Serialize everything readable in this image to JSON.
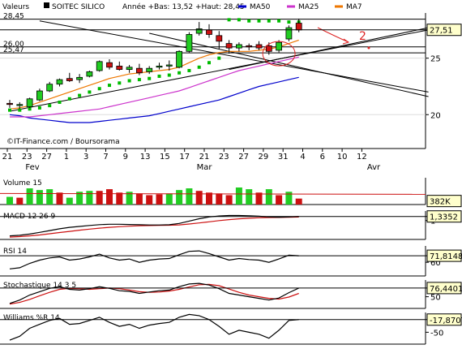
{
  "header": {
    "valeurs_label": "Valeurs",
    "stock_name": "SOITEC SILICO",
    "year_info": "Année +Bas: 13,52 +Haut: 28,45",
    "legend": [
      {
        "label": "MA50",
        "color": "#0000cc"
      },
      {
        "label": "MA25",
        "color": "#cc33cc"
      },
      {
        "label": "MA7",
        "color": "#ee7700"
      }
    ]
  },
  "watermark": "©IT-Finance.com / Boursorama",
  "annotation": "2",
  "colors": {
    "up": "#22cc22",
    "down": "#cc1111",
    "psar": "#00bb00",
    "ma50": "#0000cc",
    "ma25": "#cc33cc",
    "ma7": "#ee7700"
  },
  "chart_data": [
    {
      "type": "candlestick",
      "ylim": [
        17,
        29
      ],
      "y_ticks": [
        "20",
        "25"
      ],
      "level_labels": [
        "28,45",
        "26,00",
        "25,47"
      ],
      "levels": [
        28.45,
        26.0,
        25.47
      ],
      "last_value_label": "27,51",
      "last_value": 27.51,
      "x_tick_labels": [
        "21",
        "23",
        "27",
        "1",
        "3",
        "7",
        "9",
        "13",
        "15",
        "17",
        "21",
        "23",
        "27",
        "29",
        "31",
        "4",
        "6",
        "10",
        "12"
      ],
      "month_labels": [
        "Fev",
        "Mar",
        "Avr"
      ],
      "candles": [
        {
          "o": 21.0,
          "h": 21.3,
          "l": 20.6,
          "c": 20.9
        },
        {
          "o": 20.8,
          "h": 21.1,
          "l": 20.5,
          "c": 20.9
        },
        {
          "o": 20.7,
          "h": 21.5,
          "l": 20.6,
          "c": 21.4
        },
        {
          "o": 21.3,
          "h": 22.3,
          "l": 21.2,
          "c": 22.1
        },
        {
          "o": 22.1,
          "h": 22.9,
          "l": 22.0,
          "c": 22.7
        },
        {
          "o": 22.7,
          "h": 23.2,
          "l": 22.5,
          "c": 23.1
        },
        {
          "o": 23.2,
          "h": 23.7,
          "l": 22.9,
          "c": 23.0
        },
        {
          "o": 23.1,
          "h": 23.6,
          "l": 22.8,
          "c": 23.3
        },
        {
          "o": 23.4,
          "h": 23.9,
          "l": 23.3,
          "c": 23.8
        },
        {
          "o": 23.9,
          "h": 24.8,
          "l": 23.8,
          "c": 24.7
        },
        {
          "o": 24.6,
          "h": 24.9,
          "l": 24.0,
          "c": 24.2
        },
        {
          "o": 24.3,
          "h": 24.7,
          "l": 23.9,
          "c": 24.0
        },
        {
          "o": 24.0,
          "h": 24.4,
          "l": 23.7,
          "c": 24.2
        },
        {
          "o": 24.1,
          "h": 24.5,
          "l": 23.5,
          "c": 23.7
        },
        {
          "o": 23.8,
          "h": 24.3,
          "l": 23.6,
          "c": 24.1
        },
        {
          "o": 24.2,
          "h": 24.6,
          "l": 24.0,
          "c": 24.3
        },
        {
          "o": 24.3,
          "h": 24.8,
          "l": 23.9,
          "c": 24.4
        },
        {
          "o": 24.2,
          "h": 25.7,
          "l": 24.1,
          "c": 25.6
        },
        {
          "o": 25.6,
          "h": 27.3,
          "l": 25.5,
          "c": 27.1
        },
        {
          "o": 27.2,
          "h": 28.2,
          "l": 27.0,
          "c": 27.6
        },
        {
          "o": 27.5,
          "h": 28.0,
          "l": 26.8,
          "c": 27.1
        },
        {
          "o": 27.0,
          "h": 27.4,
          "l": 25.8,
          "c": 26.5
        },
        {
          "o": 26.3,
          "h": 26.6,
          "l": 25.4,
          "c": 25.9
        },
        {
          "o": 25.9,
          "h": 26.4,
          "l": 25.6,
          "c": 26.2
        },
        {
          "o": 26.1,
          "h": 26.3,
          "l": 25.7,
          "c": 26.0
        },
        {
          "o": 26.2,
          "h": 26.5,
          "l": 25.7,
          "c": 25.9
        },
        {
          "o": 26.1,
          "h": 26.4,
          "l": 25.3,
          "c": 25.6
        },
        {
          "o": 25.7,
          "h": 26.6,
          "l": 25.5,
          "c": 26.4
        },
        {
          "o": 26.7,
          "h": 27.9,
          "l": 26.5,
          "c": 27.7
        },
        {
          "o": 28.1,
          "h": 28.5,
          "l": 27.3,
          "c": 27.5
        }
      ],
      "psar": [
        20.4,
        20.4,
        20.5,
        20.6,
        20.8,
        21.1,
        21.4,
        21.7,
        22.0,
        22.3,
        22.6,
        22.8,
        23.0,
        23.1,
        23.2,
        23.4,
        23.5,
        23.7,
        23.9,
        24.2,
        24.6,
        25.0,
        28.4,
        28.4,
        28.3,
        28.3,
        28.3,
        28.3,
        28.2,
        28.2
      ],
      "ma7": [
        20.5,
        20.6,
        20.8,
        21.1,
        21.4,
        21.7,
        22.0,
        22.3,
        22.6,
        22.9,
        23.2,
        23.4,
        23.6,
        23.7,
        23.8,
        23.9,
        24.0,
        24.2,
        24.6,
        25.0,
        25.3,
        25.5,
        25.6,
        25.6,
        25.6,
        25.7,
        25.8,
        26.0,
        26.3,
        26.6
      ],
      "ma25": [
        19.8,
        19.8,
        19.8,
        19.9,
        20.0,
        20.1,
        20.2,
        20.3,
        20.4,
        20.5,
        20.7,
        20.9,
        21.1,
        21.3,
        21.5,
        21.7,
        21.9,
        22.1,
        22.4,
        22.7,
        23.0,
        23.3,
        23.6,
        23.9,
        24.1,
        24.3,
        24.5,
        24.7,
        24.9,
        25.1
      ],
      "ma50": [
        20.0,
        19.9,
        19.7,
        19.6,
        19.5,
        19.4,
        19.3,
        19.3,
        19.3,
        19.4,
        19.5,
        19.6,
        19.7,
        19.8,
        19.9,
        20.1,
        20.3,
        20.5,
        20.7,
        20.9,
        21.1,
        21.3,
        21.6,
        21.9,
        22.2,
        22.5,
        22.7,
        22.9,
        23.1,
        23.3
      ]
    },
    {
      "type": "bar",
      "title": "Volume 15",
      "last_value_label": "382K",
      "up": [
        1,
        0,
        1,
        1,
        1,
        0,
        1,
        1,
        1,
        0,
        0,
        0,
        1,
        0,
        0,
        0,
        1,
        1,
        1,
        0,
        0,
        0,
        0,
        1,
        1,
        0,
        1,
        0,
        1,
        0
      ],
      "values": [
        0.45,
        0.4,
        0.95,
        0.85,
        0.9,
        0.7,
        0.4,
        0.75,
        0.8,
        0.8,
        0.9,
        0.7,
        0.75,
        0.65,
        0.55,
        0.6,
        0.65,
        0.85,
        0.95,
        0.8,
        0.7,
        0.65,
        0.55,
        1.0,
        0.9,
        0.7,
        0.9,
        0.55,
        0.75,
        0.35
      ]
    },
    {
      "type": "line",
      "title": "MACD 12 26 9",
      "last_value_label": "1,3352",
      "y_tick_labels": [
        "1"
      ],
      "macd": [
        -0.3,
        -0.25,
        -0.15,
        0.0,
        0.15,
        0.3,
        0.42,
        0.5,
        0.58,
        0.65,
        0.68,
        0.68,
        0.66,
        0.64,
        0.62,
        0.62,
        0.64,
        0.75,
        0.95,
        1.15,
        1.3,
        1.38,
        1.42,
        1.42,
        1.4,
        1.36,
        1.3,
        1.28,
        1.3,
        1.34
      ],
      "signal": [
        -0.4,
        -0.36,
        -0.3,
        -0.22,
        -0.12,
        -0.02,
        0.08,
        0.18,
        0.27,
        0.35,
        0.42,
        0.48,
        0.52,
        0.55,
        0.57,
        0.59,
        0.6,
        0.63,
        0.7,
        0.79,
        0.89,
        0.99,
        1.07,
        1.14,
        1.19,
        1.23,
        1.25,
        1.26,
        1.27,
        1.29
      ]
    },
    {
      "type": "line",
      "title": "RSI 14",
      "last_value_label": "71,8148",
      "y_tick_labels": [
        "60"
      ],
      "values": [
        48,
        50,
        58,
        64,
        68,
        70,
        64,
        66,
        70,
        75,
        68,
        64,
        66,
        60,
        64,
        66,
        67,
        74,
        80,
        81,
        76,
        70,
        64,
        67,
        65,
        64,
        60,
        66,
        73,
        72
      ]
    },
    {
      "type": "line",
      "title": "Stochastique 14 3 5",
      "last_value_label": "76,4401",
      "y_tick_labels": [
        "50"
      ],
      "k": [
        30,
        40,
        55,
        65,
        75,
        80,
        72,
        70,
        74,
        80,
        75,
        68,
        66,
        60,
        64,
        68,
        70,
        80,
        88,
        90,
        85,
        74,
        60,
        55,
        50,
        45,
        40,
        46,
        62,
        76
      ],
      "d": [
        28,
        33,
        42,
        53,
        63,
        72,
        75,
        74,
        72,
        74,
        76,
        74,
        70,
        65,
        63,
        64,
        67,
        72,
        79,
        86,
        87,
        83,
        73,
        63,
        55,
        50,
        45,
        43,
        49,
        60
      ]
    },
    {
      "type": "line",
      "title": "Williams %R 14",
      "last_value_label": "-17,8707",
      "y_tick_labels": [
        "-50"
      ],
      "values": [
        -70,
        -60,
        -40,
        -30,
        -20,
        -15,
        -30,
        -28,
        -20,
        -12,
        -25,
        -35,
        -30,
        -40,
        -32,
        -28,
        -25,
        -12,
        -5,
        -8,
        -18,
        -35,
        -55,
        -45,
        -50,
        -55,
        -65,
        -45,
        -20,
        -18
      ]
    }
  ]
}
